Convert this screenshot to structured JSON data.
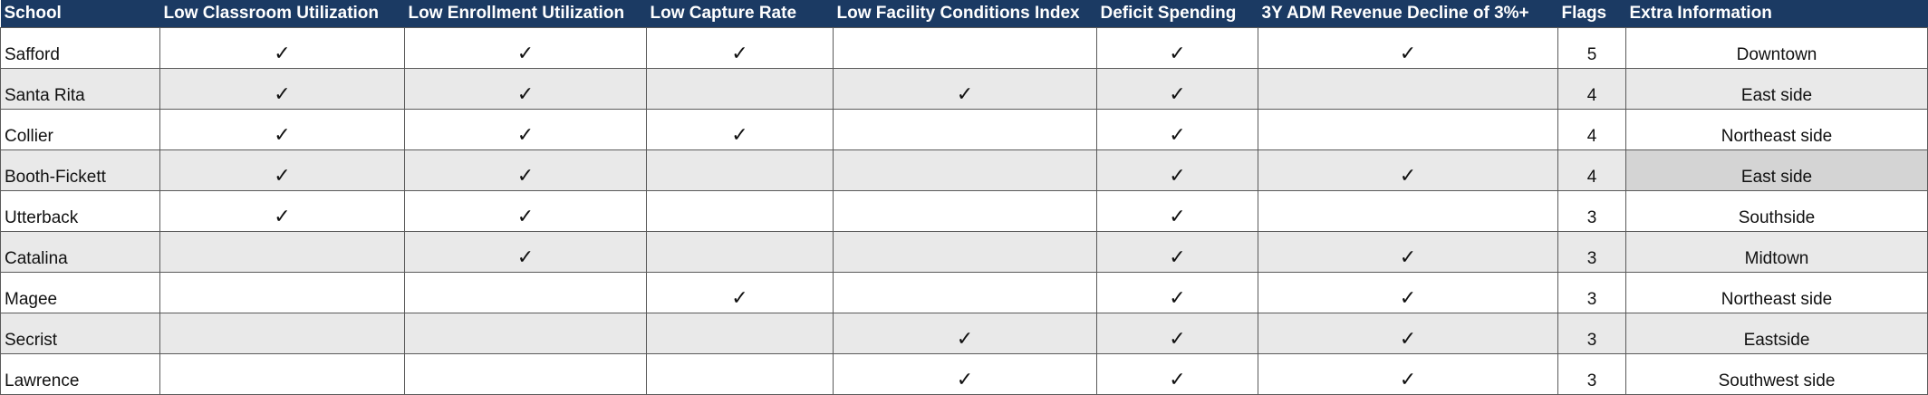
{
  "headers": [
    "School",
    "Low Classroom Utilization",
    "Low Enrollment Utilization",
    "Low Capture Rate",
    "Low Facility Conditions Index",
    "Deficit Spending",
    "3Y ADM Revenue Decline of 3%+",
    "Flags",
    "Extra Information"
  ],
  "check_glyph": "✓",
  "rows": [
    {
      "school": "Safford",
      "checks": [
        true,
        true,
        true,
        false,
        true,
        true
      ],
      "flags": "5",
      "extra": "Downtown"
    },
    {
      "school": "Santa Rita",
      "checks": [
        true,
        true,
        false,
        true,
        true,
        false
      ],
      "flags": "4",
      "extra": "East side"
    },
    {
      "school": "Collier",
      "checks": [
        true,
        true,
        true,
        false,
        true,
        false
      ],
      "flags": "4",
      "extra": "Northeast side"
    },
    {
      "school": "Booth-Fickett",
      "checks": [
        true,
        true,
        false,
        false,
        true,
        true
      ],
      "flags": "4",
      "extra": "East side"
    },
    {
      "school": "Utterback",
      "checks": [
        true,
        true,
        false,
        false,
        true,
        false
      ],
      "flags": "3",
      "extra": "Southside"
    },
    {
      "school": "Catalina",
      "checks": [
        false,
        true,
        false,
        false,
        true,
        true
      ],
      "flags": "3",
      "extra": "Midtown"
    },
    {
      "school": "Magee",
      "checks": [
        false,
        false,
        true,
        false,
        true,
        true
      ],
      "flags": "3",
      "extra": "Northeast side"
    },
    {
      "school": "Secrist",
      "checks": [
        false,
        false,
        false,
        true,
        true,
        true
      ],
      "flags": "3",
      "extra": "Eastside"
    },
    {
      "school": "Lawrence",
      "checks": [
        false,
        false,
        false,
        true,
        true,
        true
      ],
      "flags": "3",
      "extra": "Southwest side"
    }
  ]
}
